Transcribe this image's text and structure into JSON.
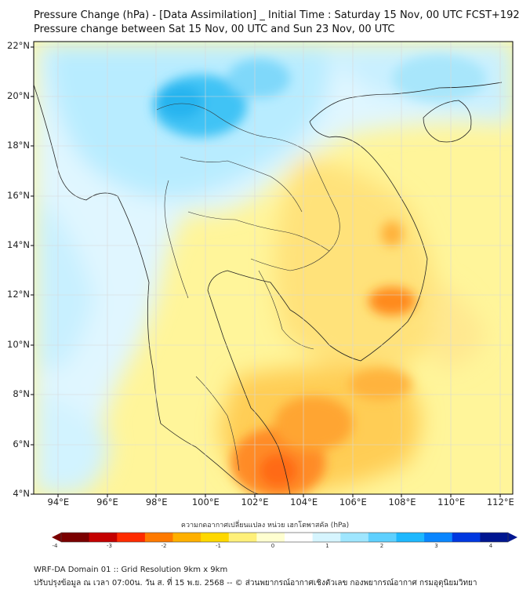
{
  "header": {
    "title_line1": "Pressure Change (hPa) - [Data Assimilation] _ Initial Time : Saturday 15 Nov, 00 UTC FCST+192",
    "title_line2": "Pressure change between Sat 15 Nov, 00 UTC and Sun 23 Nov, 00 UTC"
  },
  "map": {
    "lon_range": [
      93,
      112.5
    ],
    "lat_range": [
      4,
      22.2
    ],
    "lat_labels": [
      {
        "lat": 22,
        "label": "22°N"
      },
      {
        "lat": 20,
        "label": "20°N"
      },
      {
        "lat": 18,
        "label": "18°N"
      },
      {
        "lat": 16,
        "label": "16°N"
      },
      {
        "lat": 14,
        "label": "14°N"
      },
      {
        "lat": 12,
        "label": "12°N"
      },
      {
        "lat": 10,
        "label": "10°N"
      },
      {
        "lat": 8,
        "label": "8°N"
      },
      {
        "lat": 6,
        "label": "6°N"
      },
      {
        "lat": 4,
        "label": "4°N"
      }
    ],
    "lon_labels": [
      {
        "lon": 94,
        "label": "94°E"
      },
      {
        "lon": 96,
        "label": "96°E"
      },
      {
        "lon": 98,
        "label": "98°E"
      },
      {
        "lon": 100,
        "label": "100°E"
      },
      {
        "lon": 102,
        "label": "102°E"
      },
      {
        "lon": 104,
        "label": "104°E"
      },
      {
        "lon": 106,
        "label": "106°E"
      },
      {
        "lon": 108,
        "label": "108°E"
      },
      {
        "lon": 110,
        "label": "110°E"
      },
      {
        "lon": 112,
        "label": "112°E"
      }
    ],
    "features": [
      {
        "name": "northern-thailand-pressure-fall",
        "type": "low",
        "lon": 99.5,
        "lat": 19.6,
        "value": 1.7
      },
      {
        "name": "northern-laos-pressure-fall",
        "type": "low",
        "lon": 102,
        "lat": 20.5,
        "value": 1.0
      },
      {
        "name": "gulf-of-tonkin-pressure-fall",
        "type": "low",
        "lon": 109,
        "lat": 20.8,
        "value": 0.8
      },
      {
        "name": "andaman-sea-pressure-fall",
        "type": "low",
        "lon": 96,
        "lat": 13,
        "value": 0.4
      },
      {
        "name": "malacca-pressure-fall",
        "type": "low",
        "lon": 97.5,
        "lat": 6,
        "value": 0.5
      },
      {
        "name": "central-highlands-pressure-rise",
        "type": "high",
        "lon": 107.9,
        "lat": 11.7,
        "value": -1.6
      },
      {
        "name": "laos-pressure-rise",
        "type": "high",
        "lon": 107.5,
        "lat": 14.6,
        "value": -1.1
      },
      {
        "name": "gulf-of-thailand-pressure-rise",
        "type": "high",
        "lon": 103,
        "lat": 5,
        "value": -2.2
      }
    ]
  },
  "colorbar": {
    "title": "ความกดอากาศเปลี่ยนแปลง หน่วย เฮกโตพาสคัล (hPa)",
    "ticks": [
      "-4",
      "-3",
      "-2",
      "-1",
      "0",
      "1",
      "2",
      "3",
      "4"
    ],
    "colors": [
      "#7a0000",
      "#c40000",
      "#ff2b00",
      "#ff7a00",
      "#ffb000",
      "#ffd800",
      "#fff07a",
      "#ffffd0",
      "#ffffff",
      "#d6f5ff",
      "#9fe6ff",
      "#5fd0ff",
      "#1eb8ff",
      "#0a86ff",
      "#0038e0",
      "#001690"
    ]
  },
  "footer": {
    "line1": "WRF-DA Domain 01 :: Grid Resolution 9km x 9km",
    "line2": "ปรับปรุงข้อมูล ณ เวลา 07:00น. วัน ส. ที่ 15 พ.ย. 2568 -- © ส่วนพยากรณ์อากาศเชิงตัวเลข กองพยากรณ์อากาศ กรมอุตุนิยมวิทยา"
  }
}
